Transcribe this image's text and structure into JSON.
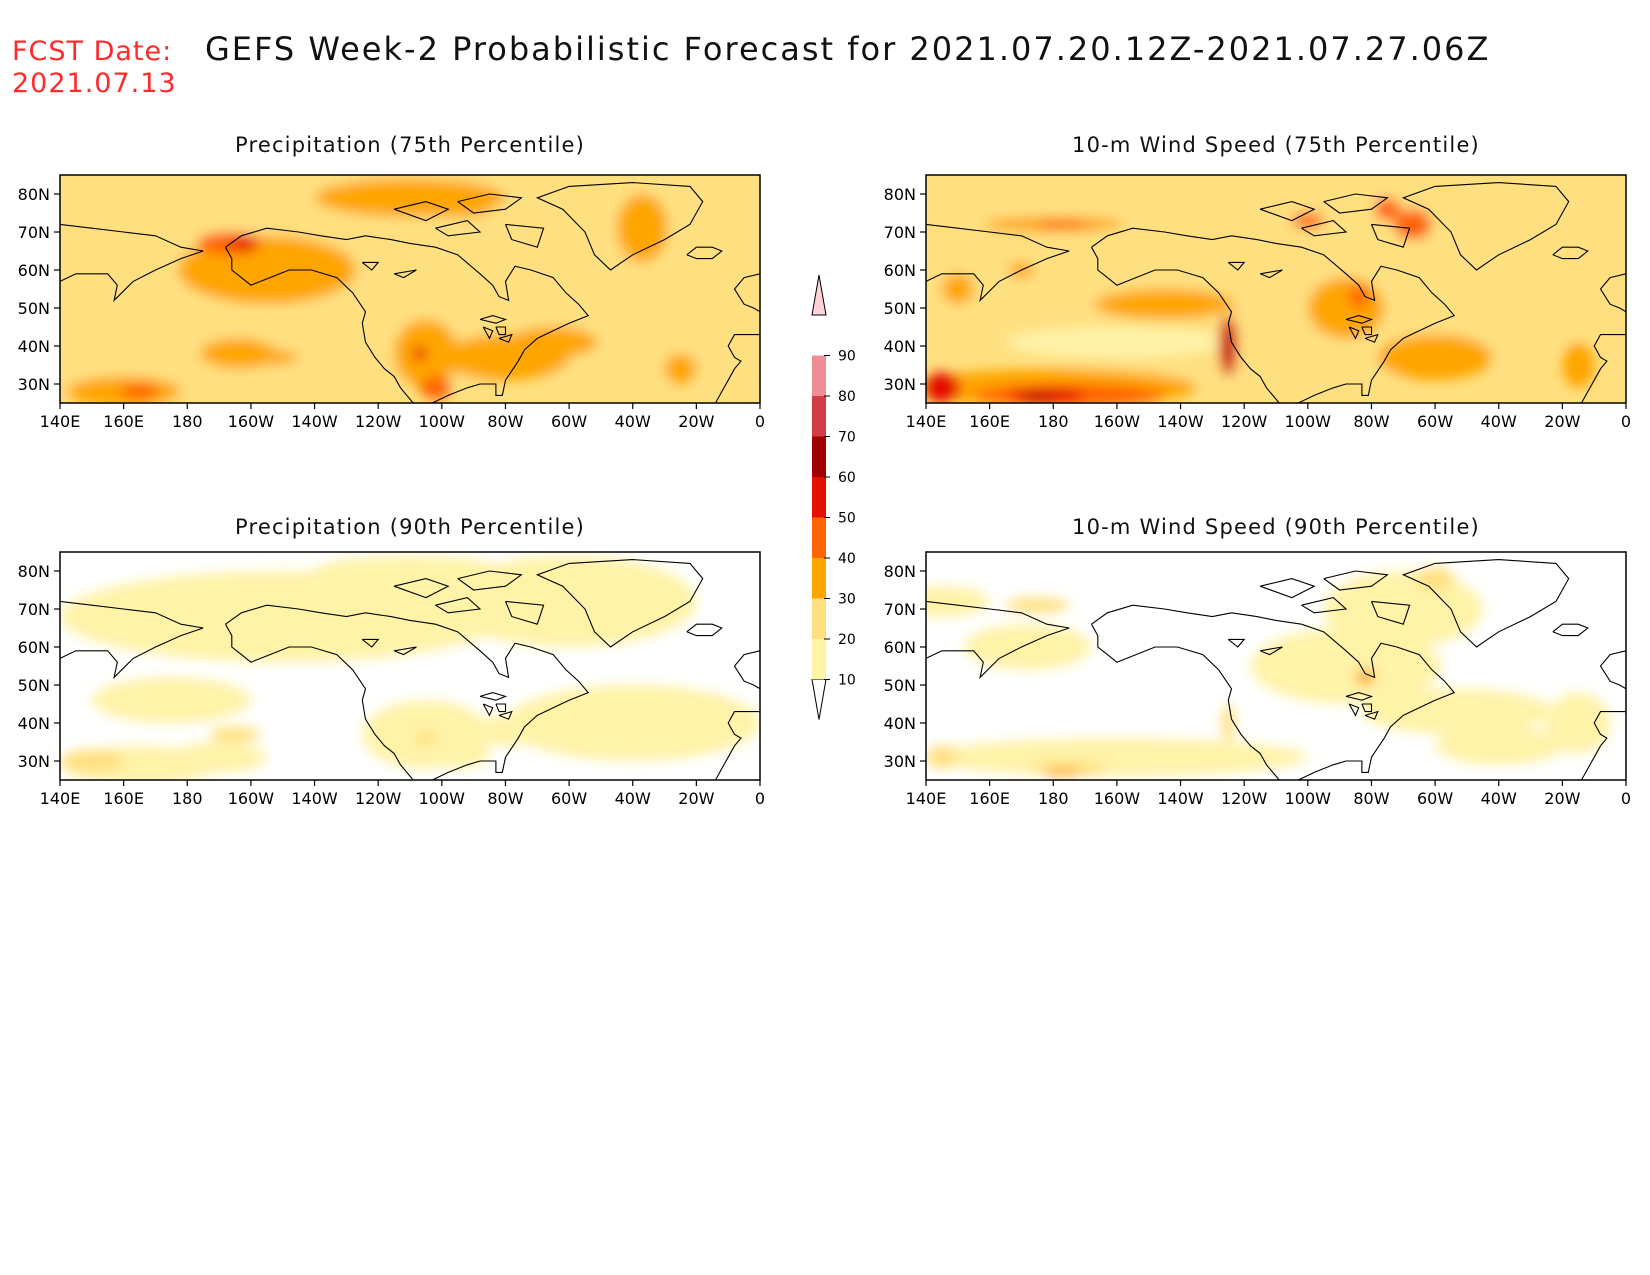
{
  "header": {
    "fcst_label": "FCST Date:",
    "fcst_date": "2021.07.13",
    "title": "GEFS Week-2 Probabilistic Forecast for 2021.07.20.12Z-2021.07.27.06Z"
  },
  "axes": {
    "lon_ticks": [
      "140E",
      "160E",
      "180",
      "160W",
      "140W",
      "120W",
      "100W",
      "80W",
      "60W",
      "40W",
      "20W",
      "0"
    ],
    "lat_ticks": [
      "80N",
      "70N",
      "60N",
      "50N",
      "40N",
      "30N"
    ]
  },
  "panels": [
    {
      "title": "Precipitation (75th Percentile)"
    },
    {
      "title": "10-m Wind Speed (75th Percentile)"
    },
    {
      "title": "Precipitation (90th Percentile)"
    },
    {
      "title": "10-m Wind Speed (90th Percentile)"
    }
  ],
  "colorbar": {
    "levels": [
      "10",
      "20",
      "30",
      "40",
      "50",
      "60",
      "70",
      "80",
      "90"
    ],
    "colors": [
      "#fff3a8",
      "#ffe080",
      "#ffa500",
      "#ff6400",
      "#e41000",
      "#a00000",
      "#d23c46",
      "#f08c96",
      "#ffd2d7"
    ]
  },
  "chart_data": {
    "type": "heatmap",
    "lon_range": [
      "140E",
      "0"
    ],
    "lat_range": [
      "25N",
      "85N"
    ],
    "panels": [
      {
        "name": "Precipitation (75th Percentile)",
        "dominant_level": "20-30",
        "max_level": "50-60"
      },
      {
        "name": "10-m Wind Speed (75th Percentile)",
        "dominant_level": "20-30",
        "max_level": "60-70"
      },
      {
        "name": "Precipitation (90th Percentile)",
        "dominant_level": "10-20",
        "max_level": "30-40"
      },
      {
        "name": "10-m Wind Speed (90th Percentile)",
        "dominant_level": "10-20",
        "max_level": "30-40"
      }
    ]
  }
}
